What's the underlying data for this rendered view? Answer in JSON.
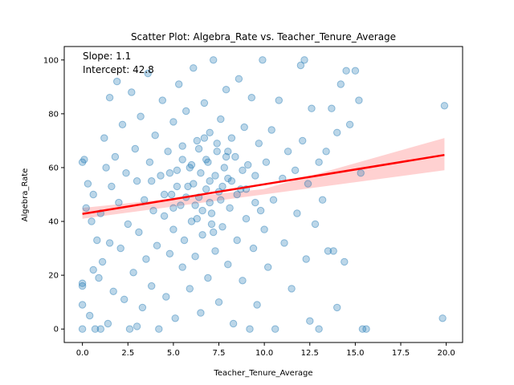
{
  "chart_data": {
    "type": "scatter",
    "title": "Scatter Plot: Algebra_Rate vs. Teacher_Tenure_Average",
    "xlabel": "Teacher_Tenure_Average",
    "ylabel": "Algebra_Rate",
    "xlim": [
      -1.0,
      20.9
    ],
    "ylim": [
      -5,
      105
    ],
    "xticks": [
      0.0,
      2.5,
      5.0,
      7.5,
      10.0,
      12.5,
      15.0,
      17.5,
      20.0
    ],
    "xtick_labels": [
      "0.0",
      "2.5",
      "5.0",
      "7.5",
      "10.0",
      "12.5",
      "15.0",
      "17.5",
      "20.0"
    ],
    "yticks": [
      0,
      20,
      40,
      60,
      80,
      100
    ],
    "ytick_labels": [
      "0",
      "20",
      "40",
      "60",
      "80",
      "100"
    ],
    "grid": false,
    "annotations": [
      "Slope: 1.1",
      "Intercept: 42.8"
    ],
    "regression": {
      "slope": 1.1,
      "intercept": 42.8,
      "x_range": [
        0.0,
        19.9
      ],
      "ci_start": [
        41.0,
        45.0
      ],
      "ci_mid": [
        50.0,
        52.0
      ],
      "ci_end": [
        59.0,
        71.0
      ]
    },
    "series": [
      {
        "marker_color": "#1f77b4",
        "line_color": "#ff0000",
        "band_color": "#ffb3b3",
        "points": [
          [
            0.0,
            62
          ],
          [
            0.1,
            63
          ],
          [
            0.0,
            17
          ],
          [
            0.0,
            16
          ],
          [
            0.0,
            9
          ],
          [
            0.0,
            0
          ],
          [
            0.2,
            45
          ],
          [
            0.3,
            54
          ],
          [
            0.5,
            40
          ],
          [
            0.4,
            5
          ],
          [
            0.6,
            50
          ],
          [
            0.6,
            22
          ],
          [
            0.7,
            0
          ],
          [
            0.8,
            33
          ],
          [
            0.9,
            19
          ],
          [
            1.0,
            0
          ],
          [
            1.0,
            43
          ],
          [
            1.1,
            25
          ],
          [
            1.2,
            71
          ],
          [
            1.3,
            60
          ],
          [
            1.4,
            2
          ],
          [
            1.5,
            32
          ],
          [
            1.5,
            86
          ],
          [
            1.6,
            53
          ],
          [
            1.7,
            14
          ],
          [
            1.8,
            64
          ],
          [
            1.9,
            92
          ],
          [
            2.0,
            47
          ],
          [
            2.1,
            30
          ],
          [
            2.2,
            76
          ],
          [
            2.3,
            11
          ],
          [
            2.4,
            58
          ],
          [
            2.5,
            39
          ],
          [
            2.6,
            0
          ],
          [
            2.7,
            88
          ],
          [
            2.8,
            21
          ],
          [
            2.9,
            67
          ],
          [
            3.0,
            1
          ],
          [
            3.0,
            55
          ],
          [
            3.1,
            36
          ],
          [
            3.2,
            79
          ],
          [
            3.3,
            8
          ],
          [
            3.4,
            48
          ],
          [
            3.5,
            26
          ],
          [
            3.6,
            95
          ],
          [
            3.7,
            62
          ],
          [
            3.8,
            16
          ],
          [
            3.9,
            44
          ],
          [
            4.0,
            72
          ],
          [
            4.1,
            31
          ],
          [
            4.2,
            0
          ],
          [
            4.3,
            57
          ],
          [
            4.4,
            85
          ],
          [
            4.5,
            42
          ],
          [
            4.6,
            12
          ],
          [
            4.7,
            66
          ],
          [
            4.8,
            28
          ],
          [
            4.9,
            50
          ],
          [
            5.0,
            77
          ],
          [
            5.0,
            37
          ],
          [
            5.1,
            4
          ],
          [
            5.2,
            59
          ],
          [
            5.3,
            91
          ],
          [
            5.4,
            46
          ],
          [
            5.5,
            23
          ],
          [
            5.5,
            68
          ],
          [
            5.6,
            33
          ],
          [
            5.7,
            81
          ],
          [
            5.8,
            53
          ],
          [
            5.9,
            15
          ],
          [
            6.0,
            61
          ],
          [
            6.0,
            40
          ],
          [
            6.1,
            97
          ],
          [
            6.2,
            27
          ],
          [
            6.3,
            70
          ],
          [
            6.4,
            49
          ],
          [
            6.5,
            6
          ],
          [
            6.5,
            58
          ],
          [
            6.6,
            35
          ],
          [
            6.7,
            84
          ],
          [
            6.8,
            63
          ],
          [
            6.9,
            19
          ],
          [
            7.0,
            55
          ],
          [
            7.0,
            73
          ],
          [
            7.1,
            43
          ],
          [
            7.2,
            100
          ],
          [
            7.3,
            29
          ],
          [
            7.4,
            66
          ],
          [
            7.5,
            51
          ],
          [
            7.5,
            10
          ],
          [
            7.6,
            78
          ],
          [
            7.7,
            38
          ],
          [
            7.8,
            60
          ],
          [
            7.9,
            89
          ],
          [
            8.0,
            24
          ],
          [
            8.0,
            56
          ],
          [
            8.1,
            45
          ],
          [
            8.2,
            71
          ],
          [
            8.3,
            2
          ],
          [
            8.4,
            64
          ],
          [
            8.5,
            33
          ],
          [
            8.6,
            93
          ],
          [
            8.7,
            52
          ],
          [
            8.8,
            18
          ],
          [
            8.9,
            75
          ],
          [
            9.0,
            41
          ],
          [
            9.1,
            61
          ],
          [
            9.2,
            0
          ],
          [
            9.3,
            86
          ],
          [
            9.4,
            30
          ],
          [
            9.5,
            57
          ],
          [
            9.6,
            9
          ],
          [
            9.7,
            69
          ],
          [
            9.8,
            44
          ],
          [
            9.9,
            100
          ],
          [
            10.0,
            37
          ],
          [
            10.1,
            62
          ],
          [
            10.2,
            23
          ],
          [
            10.4,
            74
          ],
          [
            10.5,
            48
          ],
          [
            10.6,
            0
          ],
          [
            10.8,
            85
          ],
          [
            11.0,
            56
          ],
          [
            11.1,
            32
          ],
          [
            11.3,
            66
          ],
          [
            11.5,
            15
          ],
          [
            11.7,
            59
          ],
          [
            11.8,
            43
          ],
          [
            12.0,
            98
          ],
          [
            12.1,
            70
          ],
          [
            12.2,
            100
          ],
          [
            12.3,
            26
          ],
          [
            12.4,
            54
          ],
          [
            12.5,
            3
          ],
          [
            12.6,
            82
          ],
          [
            12.8,
            39
          ],
          [
            13.0,
            62
          ],
          [
            13.0,
            0
          ],
          [
            13.2,
            48
          ],
          [
            13.4,
            66
          ],
          [
            13.5,
            29
          ],
          [
            13.7,
            82
          ],
          [
            13.8,
            29
          ],
          [
            14.0,
            8
          ],
          [
            14.0,
            73
          ],
          [
            14.2,
            91
          ],
          [
            14.4,
            25
          ],
          [
            14.5,
            96
          ],
          [
            14.7,
            76
          ],
          [
            15.0,
            96
          ],
          [
            15.2,
            85
          ],
          [
            15.4,
            0
          ],
          [
            15.6,
            0
          ],
          [
            15.3,
            58
          ],
          [
            19.8,
            4
          ],
          [
            19.9,
            83
          ],
          [
            6.2,
            46
          ],
          [
            6.8,
            52
          ],
          [
            7.3,
            57
          ],
          [
            5.7,
            49
          ],
          [
            6.9,
            62
          ],
          [
            7.6,
            48
          ],
          [
            5.2,
            53
          ],
          [
            8.2,
            55
          ],
          [
            6.4,
            67
          ],
          [
            7.1,
            39
          ],
          [
            5.9,
            60
          ],
          [
            7.9,
            64
          ],
          [
            6.6,
            44
          ],
          [
            8.5,
            50
          ],
          [
            4.8,
            58
          ],
          [
            7.4,
            69
          ],
          [
            6.1,
            54
          ],
          [
            7.0,
            47
          ],
          [
            5.5,
            63
          ],
          [
            8.8,
            59
          ],
          [
            6.3,
            41
          ],
          [
            7.7,
            53
          ],
          [
            5.0,
            45
          ],
          [
            8.0,
            66
          ],
          [
            4.5,
            50
          ],
          [
            9.0,
            52
          ],
          [
            6.7,
            71
          ],
          [
            7.2,
            36
          ],
          [
            3.8,
            55
          ],
          [
            9.5,
            47
          ]
        ]
      }
    ]
  }
}
